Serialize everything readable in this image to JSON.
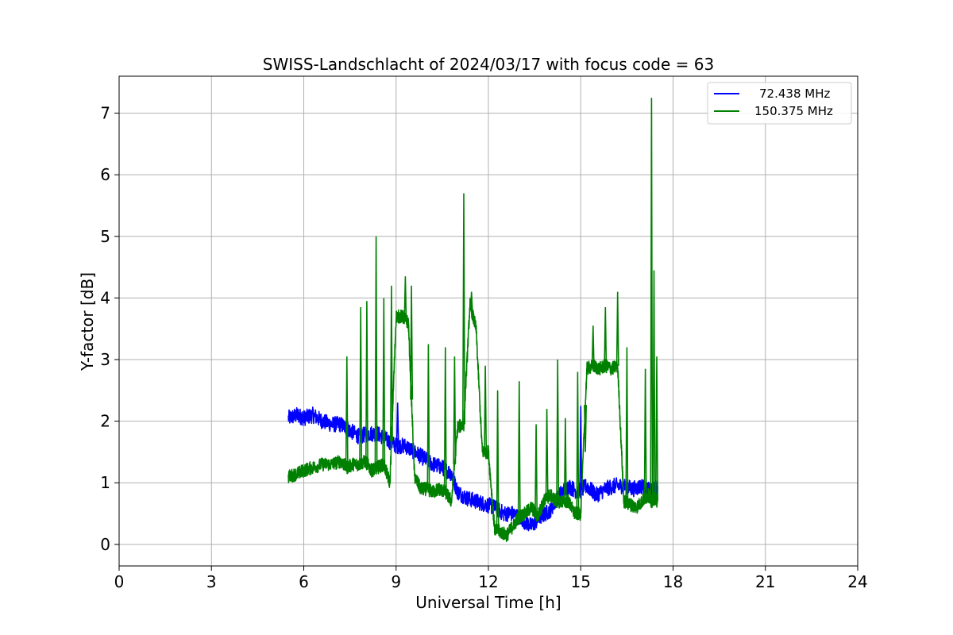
{
  "chart_data": {
    "type": "line",
    "title": "SWISS-Landschlacht of 2024/03/17 with focus code = 63",
    "xlabel": "Universal Time [h]",
    "ylabel": "Y-factor [dB]",
    "xlim": [
      0,
      24
    ],
    "ylim": [
      -0.35,
      7.6
    ],
    "xticks": [
      "0",
      "3",
      "6",
      "9",
      "12",
      "15",
      "18",
      "21",
      "24"
    ],
    "yticks": [
      "0",
      "1",
      "2",
      "3",
      "4",
      "5",
      "6",
      "7"
    ],
    "grid": true,
    "legend_position": "top-right",
    "series": [
      {
        "name": "72.438 MHz",
        "color": "#0000ff",
        "x": [
          5.5,
          5.8,
          6.0,
          6.3,
          6.6,
          6.9,
          7.2,
          7.5,
          7.8,
          8.1,
          8.4,
          8.7,
          9.0,
          9.3,
          9.6,
          9.9,
          10.2,
          10.5,
          10.8,
          11.0,
          11.3,
          11.6,
          11.9,
          12.2,
          12.5,
          12.8,
          13.1,
          13.4,
          13.7,
          14.0,
          14.3,
          14.6,
          14.9,
          15.2,
          15.5,
          15.8,
          16.1,
          16.4,
          16.7,
          17.0,
          17.3,
          17.5
        ],
        "y": [
          2.05,
          2.1,
          2.05,
          2.1,
          2.0,
          1.95,
          1.95,
          1.85,
          1.75,
          1.8,
          1.8,
          1.7,
          1.6,
          1.6,
          1.5,
          1.4,
          1.3,
          1.25,
          1.15,
          0.85,
          0.75,
          0.7,
          0.65,
          0.6,
          0.5,
          0.5,
          0.4,
          0.3,
          0.45,
          0.55,
          0.8,
          0.95,
          0.85,
          0.95,
          0.8,
          0.9,
          0.95,
          0.95,
          0.9,
          0.95,
          0.85,
          0.95
        ]
      },
      {
        "name": "150.375 MHz",
        "color": "#008000",
        "x": [
          5.5,
          5.8,
          6.0,
          6.3,
          6.6,
          6.9,
          7.2,
          7.4,
          7.6,
          7.8,
          8.0,
          8.2,
          8.4,
          8.6,
          8.8,
          9.0,
          9.2,
          9.4,
          9.6,
          9.8,
          10.0,
          10.2,
          10.4,
          10.6,
          10.8,
          11.0,
          11.2,
          11.4,
          11.6,
          11.8,
          12.0,
          12.2,
          12.4,
          12.6,
          12.8,
          13.0,
          13.2,
          13.4,
          13.6,
          13.8,
          14.0,
          14.2,
          14.4,
          14.6,
          14.8,
          15.0,
          15.2,
          15.4,
          15.6,
          15.8,
          16.0,
          16.2,
          16.4,
          16.6,
          16.8,
          17.0,
          17.2,
          17.3,
          17.4,
          17.5
        ],
        "y": [
          1.1,
          1.15,
          1.2,
          1.25,
          1.3,
          1.3,
          1.35,
          1.25,
          1.3,
          1.3,
          1.35,
          1.2,
          1.25,
          1.3,
          1.0,
          3.7,
          3.7,
          3.6,
          1.1,
          0.9,
          0.9,
          0.85,
          0.9,
          0.85,
          0.7,
          1.9,
          1.95,
          3.9,
          3.5,
          1.5,
          1.5,
          0.25,
          0.2,
          0.15,
          0.3,
          0.45,
          0.5,
          0.6,
          0.45,
          0.7,
          0.8,
          0.7,
          0.7,
          0.7,
          0.5,
          0.5,
          2.85,
          2.9,
          2.85,
          2.9,
          2.85,
          2.9,
          0.7,
          0.65,
          0.6,
          0.7,
          0.8,
          0.7,
          0.75,
          0.7
        ]
      }
    ],
    "peaks": [
      {
        "series": 1,
        "x": 7.4,
        "y": 3.05
      },
      {
        "series": 1,
        "x": 7.85,
        "y": 3.85
      },
      {
        "series": 1,
        "x": 8.05,
        "y": 3.95
      },
      {
        "series": 1,
        "x": 8.35,
        "y": 5.0
      },
      {
        "series": 1,
        "x": 8.6,
        "y": 4.0
      },
      {
        "series": 1,
        "x": 8.85,
        "y": 4.2
      },
      {
        "series": 1,
        "x": 9.3,
        "y": 4.35
      },
      {
        "series": 1,
        "x": 9.5,
        "y": 4.2
      },
      {
        "series": 1,
        "x": 10.05,
        "y": 3.25
      },
      {
        "series": 1,
        "x": 10.6,
        "y": 3.2
      },
      {
        "series": 1,
        "x": 10.9,
        "y": 3.05
      },
      {
        "series": 1,
        "x": 11.2,
        "y": 5.7
      },
      {
        "series": 1,
        "x": 11.45,
        "y": 4.1
      },
      {
        "series": 1,
        "x": 11.9,
        "y": 2.9
      },
      {
        "series": 1,
        "x": 12.3,
        "y": 2.5
      },
      {
        "series": 1,
        "x": 13.0,
        "y": 2.65
      },
      {
        "series": 1,
        "x": 13.55,
        "y": 1.95
      },
      {
        "series": 1,
        "x": 13.9,
        "y": 2.2
      },
      {
        "series": 1,
        "x": 14.25,
        "y": 3.0
      },
      {
        "series": 1,
        "x": 14.5,
        "y": 2.05
      },
      {
        "series": 1,
        "x": 14.9,
        "y": 2.8
      },
      {
        "series": 1,
        "x": 15.15,
        "y": 1.5
      },
      {
        "series": 1,
        "x": 15.4,
        "y": 3.55
      },
      {
        "series": 1,
        "x": 15.8,
        "y": 3.85
      },
      {
        "series": 1,
        "x": 16.2,
        "y": 4.1
      },
      {
        "series": 1,
        "x": 16.5,
        "y": 3.2
      },
      {
        "series": 1,
        "x": 17.1,
        "y": 2.85
      },
      {
        "series": 1,
        "x": 17.3,
        "y": 7.25
      },
      {
        "series": 1,
        "x": 17.38,
        "y": 4.45
      },
      {
        "series": 1,
        "x": 17.47,
        "y": 3.05
      },
      {
        "series": 0,
        "x": 9.05,
        "y": 2.3
      },
      {
        "series": 0,
        "x": 15.0,
        "y": 2.25
      }
    ]
  }
}
